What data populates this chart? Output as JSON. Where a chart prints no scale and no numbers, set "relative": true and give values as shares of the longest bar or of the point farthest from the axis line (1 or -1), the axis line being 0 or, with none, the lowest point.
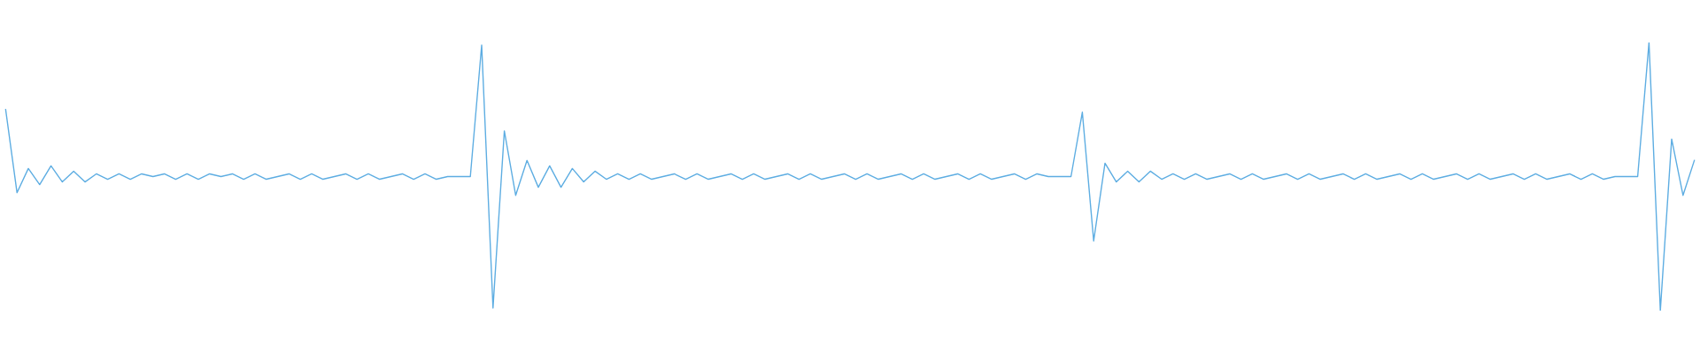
{
  "chart_data": {
    "type": "line",
    "relative": true,
    "categories": [
      null,
      null,
      null,
      null,
      null,
      null,
      null,
      null,
      null,
      null,
      null,
      null,
      null,
      null,
      null,
      null,
      null,
      null,
      null,
      null,
      null,
      null,
      null,
      null,
      null,
      null,
      null,
      null,
      null,
      null,
      null,
      null,
      null,
      null,
      null,
      null,
      null,
      null,
      null,
      null,
      null,
      null,
      null,
      null,
      null,
      null,
      null,
      null,
      null,
      null,
      null,
      null,
      null,
      null,
      null,
      null,
      null,
      null,
      null,
      null,
      null,
      null,
      null,
      null,
      null,
      null,
      null,
      null,
      null,
      null,
      null,
      null,
      null,
      null,
      null,
      null,
      null,
      null,
      null,
      null,
      null,
      null,
      null,
      null,
      null,
      null,
      null,
      null,
      null,
      null,
      null,
      null,
      null,
      null,
      null,
      null,
      null,
      null,
      null,
      null,
      null,
      null,
      null,
      null,
      null,
      null,
      null,
      null,
      null,
      null,
      null,
      null,
      null,
      null,
      null,
      null,
      null,
      null,
      null,
      null,
      null,
      null,
      null,
      null,
      null,
      null,
      null,
      null,
      null,
      null,
      null,
      null,
      null,
      null,
      null,
      null,
      null,
      null,
      null,
      null,
      null,
      null,
      null,
      null,
      null,
      null,
      null,
      null,
      null,
      null
    ],
    "series": [
      {
        "color": "#5dade2",
        "values": [
          0.75,
          0.44,
          0.53,
          0.47,
          0.54,
          0.48,
          0.52,
          0.48,
          0.51,
          0.49,
          0.51,
          0.49,
          0.51,
          0.5,
          0.51,
          0.49,
          0.51,
          0.49,
          0.51,
          0.5,
          0.51,
          0.49,
          0.51,
          0.49,
          0.5,
          0.51,
          0.49,
          0.51,
          0.49,
          0.5,
          0.51,
          0.49,
          0.51,
          0.49,
          0.5,
          0.51,
          0.49,
          0.51,
          0.49,
          0.5,
          0.5,
          0.5,
          0.99,
          0.01,
          0.67,
          0.43,
          0.56,
          0.46,
          0.54,
          0.46,
          0.53,
          0.48,
          0.52,
          0.49,
          0.51,
          0.49,
          0.51,
          0.49,
          0.5,
          0.51,
          0.49,
          0.51,
          0.49,
          0.5,
          0.51,
          0.49,
          0.51,
          0.49,
          0.5,
          0.51,
          0.49,
          0.51,
          0.49,
          0.5,
          0.51,
          0.49,
          0.51,
          0.49,
          0.5,
          0.51,
          0.49,
          0.51,
          0.49,
          0.5,
          0.51,
          0.49,
          0.51,
          0.49,
          0.5,
          0.51,
          0.49,
          0.51,
          0.5,
          0.5,
          0.5,
          0.74,
          0.26,
          0.55,
          0.48,
          0.52,
          0.48,
          0.52,
          0.49,
          0.51,
          0.49,
          0.51,
          0.49,
          0.5,
          0.51,
          0.49,
          0.51,
          0.49,
          0.5,
          0.51,
          0.49,
          0.51,
          0.49,
          0.5,
          0.51,
          0.49,
          0.51,
          0.49,
          0.5,
          0.51,
          0.49,
          0.51,
          0.49,
          0.5,
          0.51,
          0.49,
          0.51,
          0.49,
          0.5,
          0.51,
          0.49,
          0.51,
          0.49,
          0.5,
          0.51,
          0.49,
          0.51,
          0.49,
          0.5,
          0.5,
          0.5,
          1.0,
          0.0,
          0.64,
          0.43,
          0.56
        ]
      }
    ]
  }
}
